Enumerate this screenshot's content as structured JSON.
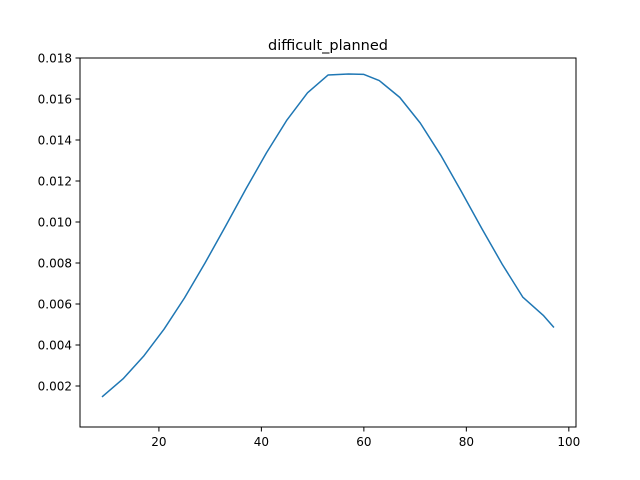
{
  "chart_data": {
    "type": "line",
    "title": "difficult_planned",
    "xlabel": "",
    "ylabel": "",
    "xlim": [
      4.6,
      101.4
    ],
    "ylim": [
      0.0,
      0.018
    ],
    "grid": false,
    "x_ticks": [
      20,
      40,
      60,
      80,
      100
    ],
    "x_tick_labels": [
      "20",
      "40",
      "60",
      "80",
      "100"
    ],
    "y_ticks": [
      0.002,
      0.004,
      0.006,
      0.008,
      0.01,
      0.012,
      0.014,
      0.016,
      0.018
    ],
    "y_tick_labels": [
      "0.002",
      "0.004",
      "0.006",
      "0.008",
      "0.010",
      "0.012",
      "0.014",
      "0.016",
      "0.018"
    ],
    "series": [
      {
        "color": "#1f77b4",
        "x": [
          9,
          13,
          17,
          21,
          25,
          29,
          33,
          37,
          41,
          45,
          49,
          53,
          57,
          60,
          63,
          67,
          71,
          75,
          79,
          83,
          87,
          91,
          95,
          97
        ],
        "y": [
          0.00149,
          0.00235,
          0.00345,
          0.00477,
          0.0063,
          0.008,
          0.00979,
          0.01162,
          0.01338,
          0.01498,
          0.0163,
          0.01717,
          0.01722,
          0.0172,
          0.0169,
          0.01608,
          0.01483,
          0.01326,
          0.0115,
          0.00969,
          0.00794,
          0.00634,
          0.00545,
          0.00488
        ]
      }
    ]
  }
}
